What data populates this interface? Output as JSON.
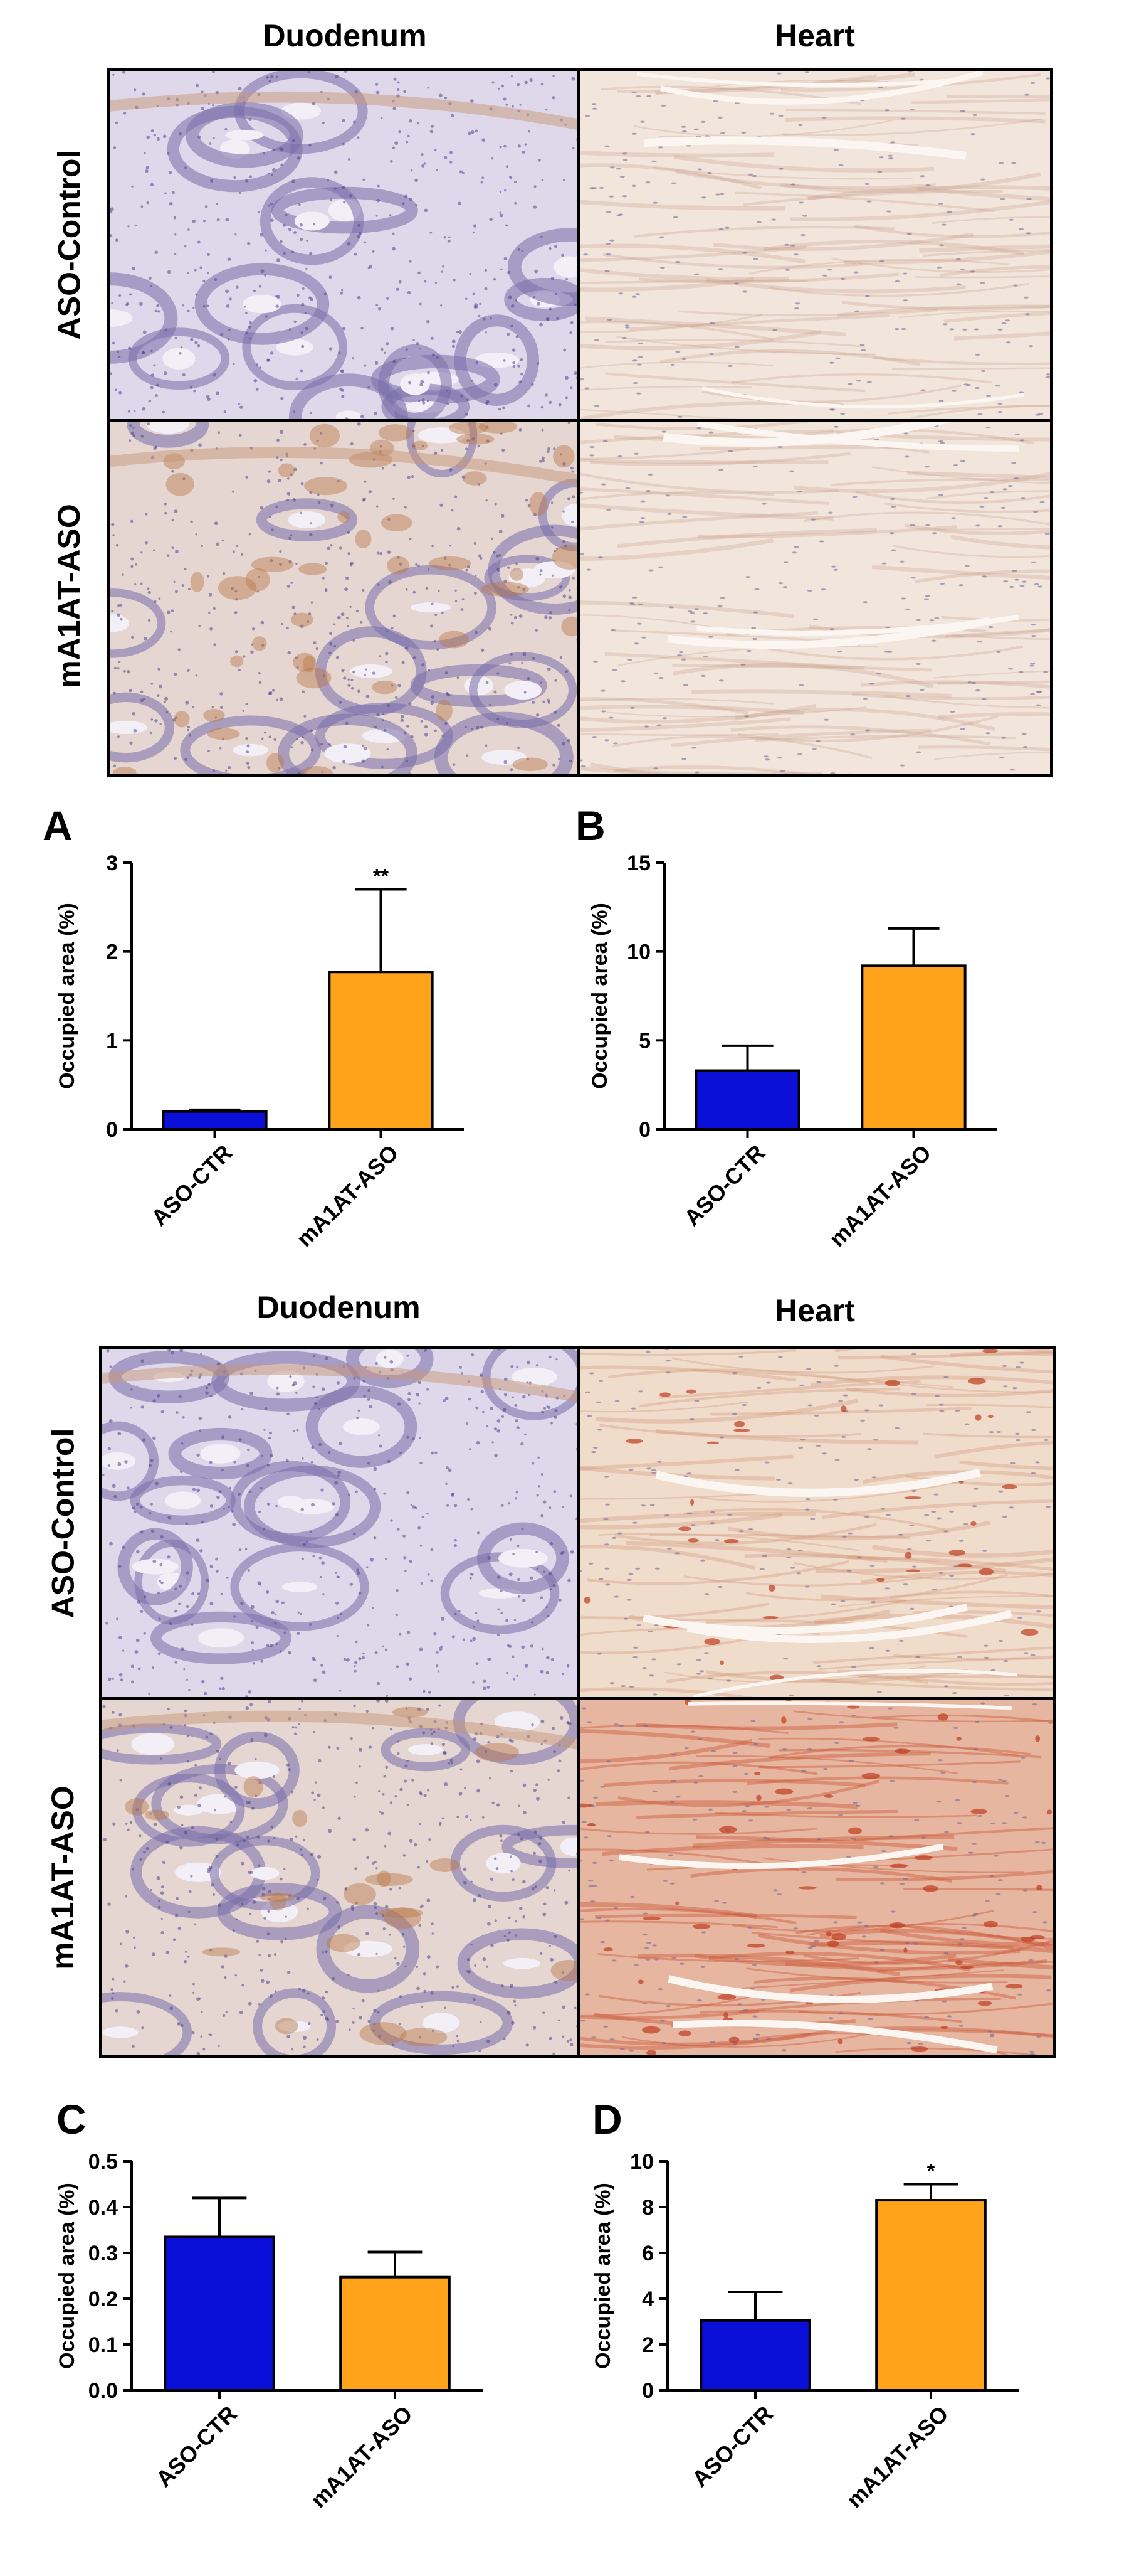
{
  "figure": {
    "top": {
      "column_headers": [
        "Duodenum",
        "Heart"
      ],
      "row_headers": [
        "ASO-Control",
        "mA1AT-ASO"
      ]
    },
    "bottom": {
      "column_headers": [
        "Duodenum",
        "Heart"
      ],
      "row_headers": [
        "ASO-Control",
        "mA1AT-ASO"
      ]
    },
    "images": [
      {
        "name": "top-duodenum-aso-control",
        "stain_level": "none",
        "tissue": "duodenum"
      },
      {
        "name": "top-heart-aso-control",
        "stain_level": "low",
        "tissue": "heart"
      },
      {
        "name": "top-duodenum-ma1at-aso",
        "stain_level": "moderate",
        "tissue": "duodenum"
      },
      {
        "name": "top-heart-ma1at-aso",
        "stain_level": "low",
        "tissue": "heart"
      },
      {
        "name": "bottom-duodenum-aso-control",
        "stain_level": "none",
        "tissue": "duodenum"
      },
      {
        "name": "bottom-heart-aso-control",
        "stain_level": "spotted",
        "tissue": "heart"
      },
      {
        "name": "bottom-duodenum-ma1at-aso",
        "stain_level": "low",
        "tissue": "duodenum"
      },
      {
        "name": "bottom-heart-ma1at-aso",
        "stain_level": "high",
        "tissue": "heart"
      }
    ]
  },
  "colors": {
    "aso_ctr": "#0a10d8",
    "ma1at_aso": "#ffa31a",
    "axis": "#000000"
  },
  "chart_data": [
    {
      "panel": "A",
      "type": "bar",
      "categories": [
        "ASO-CTR",
        "mA1AT-ASO"
      ],
      "values": [
        0.2,
        1.77
      ],
      "errors": [
        0.02,
        0.93
      ],
      "significance": [
        "",
        "**"
      ],
      "ylabel": "Occupied area (%)",
      "ylim": [
        0,
        3
      ],
      "yticks": [
        0,
        1,
        2,
        3
      ],
      "ytick_labels": [
        "0",
        "1",
        "2",
        "3"
      ],
      "grid": false
    },
    {
      "panel": "B",
      "type": "bar",
      "categories": [
        "ASO-CTR",
        "mA1AT-ASO"
      ],
      "values": [
        3.3,
        9.2
      ],
      "errors": [
        1.4,
        2.1
      ],
      "significance": [
        "",
        ""
      ],
      "ylabel": "Occupied area (%)",
      "ylim": [
        0,
        15
      ],
      "yticks": [
        0,
        5,
        10,
        15
      ],
      "ytick_labels": [
        "0",
        "5",
        "10",
        "15"
      ],
      "grid": false
    },
    {
      "panel": "C",
      "type": "bar",
      "categories": [
        "ASO-CTR",
        "mA1AT-ASO"
      ],
      "values": [
        0.335,
        0.247
      ],
      "errors": [
        0.085,
        0.055
      ],
      "significance": [
        "",
        ""
      ],
      "ylabel": "Occupied area (%)",
      "ylim": [
        0,
        0.5
      ],
      "yticks": [
        0,
        0.1,
        0.2,
        0.3,
        0.4,
        0.5
      ],
      "ytick_labels": [
        "0.0",
        "0.1",
        "0.2",
        "0.3",
        "0.4",
        "0.5"
      ],
      "grid": false
    },
    {
      "panel": "D",
      "type": "bar",
      "categories": [
        "ASO-CTR",
        "mA1AT-ASO"
      ],
      "values": [
        3.05,
        8.3
      ],
      "errors": [
        1.25,
        0.7
      ],
      "significance": [
        "",
        "*"
      ],
      "ylabel": "Occupied area (%)",
      "ylim": [
        0,
        10
      ],
      "yticks": [
        0,
        2,
        4,
        6,
        8,
        10
      ],
      "ytick_labels": [
        "0",
        "2",
        "4",
        "6",
        "8",
        "10"
      ],
      "grid": false
    }
  ]
}
